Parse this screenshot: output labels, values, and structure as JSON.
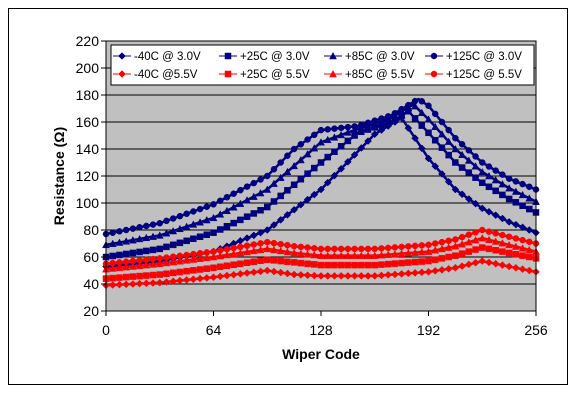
{
  "chart_data": {
    "type": "line",
    "xlabel": "Wiper Code",
    "ylabel": "Resistance (Ω)",
    "xlim": [
      0,
      256
    ],
    "ylim": [
      20,
      220
    ],
    "xticks": [
      "0",
      "64",
      "128",
      "192",
      "256"
    ],
    "yticks": [
      "20",
      "40",
      "60",
      "80",
      "100",
      "120",
      "140",
      "160",
      "180",
      "200",
      "220"
    ],
    "grid": true,
    "legend_position": "top",
    "colors": {
      "blue": "#000080",
      "red": "#ff0000",
      "plot_background": "#c0c0c0"
    },
    "series": [
      {
        "name": "-40C @ 3.0V",
        "color": "#000080",
        "marker": "diamond",
        "x": [
          0,
          32,
          64,
          96,
          128,
          160,
          176,
          192,
          208,
          224,
          240,
          256
        ],
        "y": [
          53,
          57,
          64,
          80,
          110,
          151,
          163,
          133,
          110,
          96,
          86,
          78
        ]
      },
      {
        "name": "+25C @ 3.0V",
        "color": "#000080",
        "marker": "square",
        "x": [
          0,
          32,
          64,
          96,
          128,
          150,
          170,
          180,
          192,
          208,
          224,
          240,
          256
        ],
        "y": [
          60,
          66,
          78,
          97,
          130,
          152,
          160,
          168,
          152,
          130,
          115,
          103,
          93
        ]
      },
      {
        "name": "+85C @ 3.0V",
        "color": "#000080",
        "marker": "triangle",
        "x": [
          0,
          32,
          64,
          96,
          128,
          150,
          170,
          183,
          192,
          208,
          224,
          240,
          256
        ],
        "y": [
          69,
          76,
          89,
          110,
          145,
          155,
          163,
          173,
          162,
          140,
          123,
          111,
          101
        ]
      },
      {
        "name": "+125C @ 3.0V",
        "color": "#000080",
        "marker": "circle",
        "x": [
          0,
          32,
          64,
          96,
          112,
          128,
          150,
          170,
          186,
          192,
          208,
          224,
          240,
          256
        ],
        "y": [
          77,
          85,
          99,
          120,
          140,
          154,
          157,
          165,
          177,
          172,
          148,
          130,
          118,
          110
        ]
      },
      {
        "name": "-40C @5.5V",
        "color": "#ff0000",
        "marker": "diamond",
        "x": [
          0,
          32,
          64,
          96,
          112,
          128,
          160,
          192,
          208,
          224,
          240,
          256
        ],
        "y": [
          39,
          41,
          45,
          50,
          47,
          46,
          46,
          49,
          52,
          57,
          53,
          49
        ]
      },
      {
        "name": "+25C @ 5.5V",
        "color": "#ff0000",
        "marker": "square",
        "x": [
          0,
          32,
          64,
          96,
          112,
          128,
          160,
          192,
          208,
          224,
          240,
          256
        ],
        "y": [
          44,
          47,
          52,
          58,
          56,
          54,
          54,
          57,
          61,
          67,
          63,
          59
        ]
      },
      {
        "name": "+85C @ 5.5V",
        "color": "#ff0000",
        "marker": "triangle",
        "x": [
          0,
          32,
          64,
          96,
          112,
          128,
          160,
          192,
          208,
          224,
          240,
          256
        ],
        "y": [
          51,
          55,
          60,
          66,
          63,
          61,
          61,
          64,
          68,
          74,
          69,
          64
        ]
      },
      {
        "name": "+125C @ 5.5V",
        "color": "#ff0000",
        "marker": "circle",
        "x": [
          0,
          32,
          64,
          96,
          112,
          128,
          160,
          192,
          208,
          224,
          240,
          256
        ],
        "y": [
          55,
          59,
          64,
          71,
          68,
          66,
          66,
          69,
          73,
          80,
          75,
          70
        ]
      }
    ]
  }
}
